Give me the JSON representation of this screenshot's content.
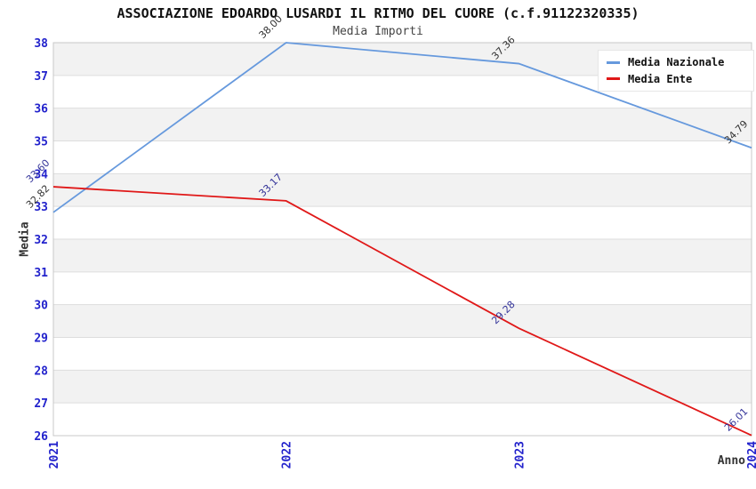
{
  "chart": {
    "title": "ASSOCIAZIONE EDOARDO LUSARDI IL RITMO DEL CUORE (c.f.91122320335)",
    "subtitle": "Media Importi"
  },
  "chart_data": {
    "type": "line",
    "categories": [
      "2021",
      "2022",
      "2023",
      "2024"
    ],
    "series": [
      {
        "name": "Media Nazionale",
        "color": "#6699dd",
        "label_color": "#333333",
        "values": [
          32.82,
          38.0,
          37.36,
          34.79
        ]
      },
      {
        "name": "Media Ente",
        "color": "#e01818",
        "label_color": "#333399",
        "values": [
          33.6,
          33.17,
          29.28,
          26.01
        ]
      }
    ],
    "xlabel": "Anno",
    "ylabel": "Media",
    "ylim": [
      26,
      38
    ],
    "y_tick_step": 1,
    "grid": "horizontal gridlines with alternating gray bands",
    "legend_position": "top-right",
    "tick_color": "#2222cc",
    "band_color": "#f2f2f2",
    "gridline_color": "#dddddd",
    "border_color": "#c8c8c8",
    "point_label_format": "2 decimals, rotated 45deg"
  }
}
